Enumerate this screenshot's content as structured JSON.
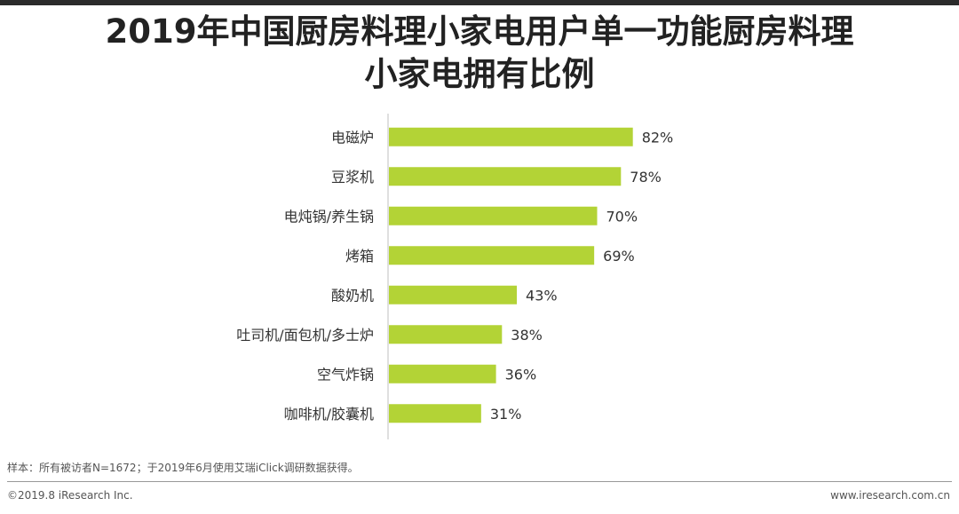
{
  "page": {
    "title_line1": "2019年中国厨房料理小家电用户单一功能厨房料理",
    "title_line2": "小家电拥有比例",
    "footnote": "样本：所有被访者N=1672；于2019年6月使用艾瑞iClick调研数据获得。",
    "copyright": "©2019.8 iResearch Inc.",
    "website": "www.iresearch.com.cn"
  },
  "chart_data": {
    "type": "bar",
    "orientation": "horizontal",
    "title": "2019年中国厨房料理小家电用户单一功能厨房料理小家电拥有比例",
    "categories": [
      "电磁炉",
      "豆浆机",
      "电炖锅/养生锅",
      "烤箱",
      "酸奶机",
      "吐司机/面包机/多士炉",
      "空气炸锅",
      "咖啡机/胶囊机"
    ],
    "values": [
      82,
      78,
      70,
      69,
      43,
      38,
      36,
      31
    ],
    "value_labels": [
      "82%",
      "78%",
      "70%",
      "69%",
      "43%",
      "38%",
      "36%",
      "31%"
    ],
    "xlim": [
      0,
      100
    ],
    "unit": "%",
    "bar_color": "#b3d336",
    "axis_color": "#bfbfbf",
    "grid": false,
    "legend": "none"
  }
}
